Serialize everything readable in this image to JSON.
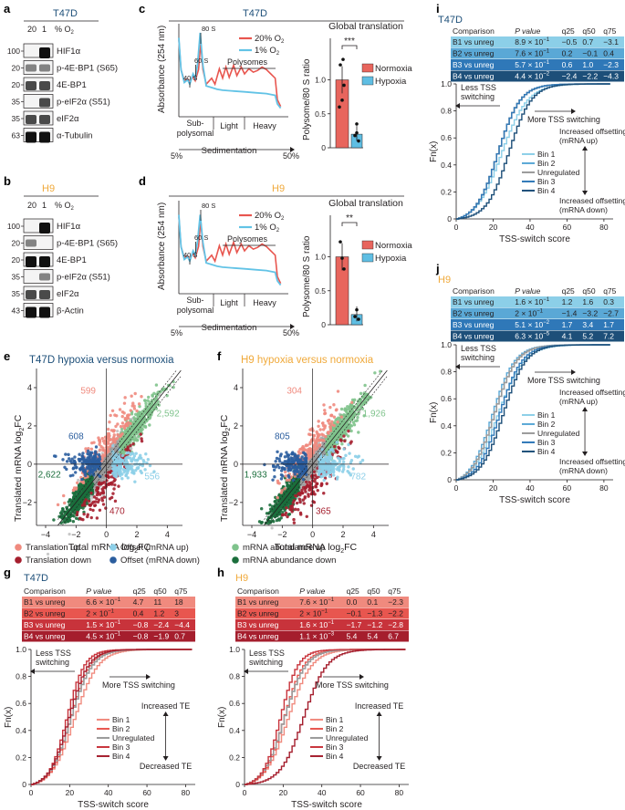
{
  "colors": {
    "t47d": "#1d4f79",
    "h9": "#f0a93a",
    "red": "#e8564f",
    "cyan": "#62c3e6",
    "bar_red": "#e8655d",
    "bar_cyan": "#5fbee3",
    "trans_up": "#f08a7e",
    "trans_down": "#a51e2d",
    "offset_up": "#8ccfe8",
    "offset_down": "#2a5d9e",
    "abund_up": "#7fc38c",
    "abund_down": "#1b6e3c"
  },
  "panel_letters": {
    "a": "a",
    "b": "b",
    "c": "c",
    "d": "d",
    "e": "e",
    "f": "f",
    "g": "g",
    "h": "h",
    "i": "i",
    "j": "j"
  },
  "panel_a": {
    "title": "T47D",
    "lanes": [
      "20",
      "1"
    ],
    "o2_label": "% O",
    "o2_sub": "2",
    "markers": [
      "100",
      "20",
      "20",
      "35",
      "35",
      "63"
    ],
    "bands": [
      "HIF1α",
      "p-4E-BP1 (S65)",
      "4E-BP1",
      "p-eIF2α (S51)",
      "eIF2α",
      "α-Tubulin"
    ]
  },
  "panel_b": {
    "title": "H9",
    "lanes": [
      "20",
      "1"
    ],
    "o2_label": "% O",
    "o2_sub": "2",
    "markers": [
      "100",
      "20",
      "20",
      "35",
      "35",
      "43"
    ],
    "bands": [
      "HIF1α",
      "p-4E-BP1 (S65)",
      "4E-BP1",
      "p-eIF2α (S51)",
      "eIF2α",
      "β-Actin"
    ]
  },
  "panel_c": {
    "title": "T47D",
    "ylabel": "Absorbance (254 nm)",
    "xlabel": "Sedimentation",
    "x_start": "5%",
    "x_end": "50%",
    "peaks": [
      "40 S",
      "60 S",
      "80 S"
    ],
    "polysomes": "Polysomes",
    "fractions": [
      "Sub-",
      "polysomal",
      "Light",
      "Heavy"
    ],
    "legend": [
      "20% O",
      "1% O"
    ],
    "legend_sub": "2",
    "bar_title": "Global translation",
    "bar_ylabel": "Polysome/80 S ratio",
    "bar_yticks": [
      "0",
      "0.5",
      "1.0"
    ],
    "significance": "***",
    "bar_legend": [
      "Normoxia",
      "Hypoxia"
    ]
  },
  "panel_d": {
    "title": "H9",
    "ylabel": "Absorbance (254 nm)",
    "xlabel": "Sedimentation",
    "x_start": "5%",
    "x_end": "50%",
    "peaks": [
      "40 S",
      "60 S",
      "80 S"
    ],
    "polysomes": "Polysomes",
    "fractions": [
      "Sub-",
      "polysomal",
      "Light",
      "Heavy"
    ],
    "legend": [
      "20% O",
      "1% O"
    ],
    "legend_sub": "2",
    "bar_title": "Global translation",
    "bar_ylabel": "Polysome/80 S ratio",
    "bar_yticks": [
      "0",
      "0.5",
      "1.0"
    ],
    "significance": "**",
    "bar_legend": [
      "Normoxia",
      "Hypoxia"
    ]
  },
  "panel_e": {
    "title": "T47D hypoxia versus normoxia",
    "ylabel": "Translated mRNA log",
    "xlabel": "Total mRNA log",
    "sub2": "2",
    "fc": "FC",
    "xticks": [
      "−4",
      "−2",
      "0",
      "2",
      "4"
    ],
    "yticks": [
      "−2",
      "0",
      "2",
      "4"
    ],
    "counts": {
      "trans_up": "599",
      "abund_up": "2,592",
      "offset_down": "608",
      "offset_up": "556",
      "abund_down": "2,622",
      "trans_down": "470"
    }
  },
  "panel_f": {
    "title": "H9 hypoxia versus normoxia",
    "ylabel": "Translated mRNA log",
    "xlabel": "Total mRNA log",
    "sub2": "2",
    "fc": "FC",
    "xticks": [
      "−4",
      "−2",
      "0",
      "2",
      "4"
    ],
    "yticks": [
      "−2",
      "0",
      "2",
      "4"
    ],
    "counts": {
      "trans_up": "304",
      "abund_up": "1,926",
      "offset_down": "805",
      "offset_up": "782",
      "abund_down": "1,933",
      "trans_down": "365"
    }
  },
  "legend_ef": {
    "trans_up": "Translation up",
    "offset_up": "Offset (mRNA up)",
    "abund_up": "mRNA abundance up",
    "trans_down": "Translation down",
    "offset_down": "Offset (mRNA down)",
    "abund_down": "mRNA abundance down"
  },
  "tables": {
    "headers": [
      "Comparison",
      "P value",
      "q25",
      "q50",
      "q75"
    ],
    "g": {
      "title": "T47D",
      "rows": [
        {
          "cmp": "B1 vs unreg",
          "p": "6.6 × 10",
          "exp": "−1",
          "q25": "4.7",
          "q50": "11",
          "q75": "18"
        },
        {
          "cmp": "B2 vs unreg",
          "p": "2 × 10",
          "exp": "−1",
          "q25": "0.4",
          "q50": "1.2",
          "q75": "3"
        },
        {
          "cmp": "B3 vs unreg",
          "p": "1.5 × 10",
          "exp": "−1",
          "q25": "−0.8",
          "q50": "−2.4",
          "q75": "−4.4"
        },
        {
          "cmp": "B4 vs unreg",
          "p": "4.5 × 10",
          "exp": "−1",
          "q25": "−0.8",
          "q50": "−1.9",
          "q75": "0.7"
        }
      ]
    },
    "h": {
      "title": "H9",
      "rows": [
        {
          "cmp": "B1 vs unreg",
          "p": "7.6 × 10",
          "exp": "−1",
          "q25": "0.0",
          "q50": "0.1",
          "q75": "−2.3"
        },
        {
          "cmp": "B2 vs unreg",
          "p": "2 × 10",
          "exp": "−1",
          "q25": "−0.1",
          "q50": "−1.3",
          "q75": "−2.2"
        },
        {
          "cmp": "B3 vs unreg",
          "p": "1.6 × 10",
          "exp": "−1",
          "q25": "−1.7",
          "q50": "−1.2",
          "q75": "−2.8"
        },
        {
          "cmp": "B4 vs unreg",
          "p": "1.1 × 10",
          "exp": "−3",
          "q25": "5.4",
          "q50": "5.4",
          "q75": "6.7"
        }
      ]
    },
    "i": {
      "title": "T47D",
      "rows": [
        {
          "cmp": "B1 vs unreg",
          "p": "8.9 × 10",
          "exp": "−1",
          "q25": "−0.5",
          "q50": "0.7",
          "q75": "−3.1"
        },
        {
          "cmp": "B2 vs unreg",
          "p": "7.6 × 10",
          "exp": "−1",
          "q25": "0.2",
          "q50": "−0.1",
          "q75": "0.4"
        },
        {
          "cmp": "B3 vs unreg",
          "p": "5.7 × 10",
          "exp": "−1",
          "q25": "0.6",
          "q50": "1.0",
          "q75": "−2.3"
        },
        {
          "cmp": "B4 vs unreg",
          "p": "4.4 × 10",
          "exp": "−2",
          "q25": "−2.4",
          "q50": "−2.2",
          "q75": "−4.3"
        }
      ]
    },
    "j": {
      "title": "H9",
      "rows": [
        {
          "cmp": "B1 vs unreg",
          "p": "1.6 × 10",
          "exp": "−1",
          "q25": "1.2",
          "q50": "1.6",
          "q75": "0.3"
        },
        {
          "cmp": "B2 vs unreg",
          "p": "2 × 10",
          "exp": "−1",
          "q25": "−1.4",
          "q50": "−3.2",
          "q75": "−2.7"
        },
        {
          "cmp": "B3 vs unreg",
          "p": "5.1 × 10",
          "exp": "−2",
          "q25": "1.7",
          "q50": "3.4",
          "q75": "1.7"
        },
        {
          "cmp": "B4 vs unreg",
          "p": "6.3 × 10",
          "exp": "−5",
          "q25": "4.1",
          "q50": "5.2",
          "q75": "7.2"
        }
      ]
    }
  },
  "ecdf": {
    "xlabel": "TSS-switch score",
    "ylabel": "Fn(x)",
    "xticks": [
      "0",
      "20",
      "40",
      "60",
      "80"
    ],
    "yticks": [
      "0",
      "0.2",
      "0.4",
      "0.6",
      "0.8",
      "1.0"
    ],
    "less": [
      "Less TSS",
      "switching"
    ],
    "more": "More TSS switching",
    "bins": [
      "Bin 1",
      "Bin 2",
      "Unregulated",
      "Bin 3",
      "Bin 4"
    ],
    "gh_up": "Increased TE",
    "gh_down": "Decreased TE",
    "ij_up": [
      "Increased offsetting",
      "(mRNA up)"
    ],
    "ij_down": [
      "Increased offsetting",
      "(mRNA down)"
    ]
  }
}
